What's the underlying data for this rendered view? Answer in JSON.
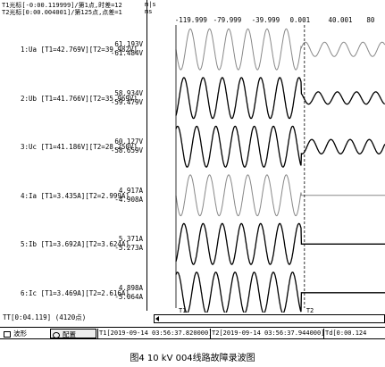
{
  "header": {
    "t1_cursor": "T1光标[-0:00.119999]/第1点,时差=12",
    "t2_cursor": "T2光标[0:00.004001]/第125点,点差=1",
    "unit_row1": "m|s",
    "unit_row2": "ms"
  },
  "time_axis": {
    "ticks": [
      {
        "label": "-119.999",
        "value": -119.999
      },
      {
        "label": "-79.999",
        "value": -79.999
      },
      {
        "label": "-39.999",
        "value": -39.999
      },
      {
        "label": "0.001",
        "value": 0.001
      },
      {
        "label": "40.001",
        "value": 40.001
      },
      {
        "label": "80",
        "value": 80
      }
    ],
    "range_ms": [
      -130,
      88
    ]
  },
  "channels": [
    {
      "label": "1:Ua [T1=42.769V][T2=39.982V]",
      "max": "61.193V",
      "min": "-61.484V",
      "color": "#888888",
      "amp_before": 1.0,
      "amp_after": 0.35
    },
    {
      "label": "2:Ub [T1=41.766V][T2=35.969V]",
      "max": "58.934V",
      "min": "-59.479V",
      "color": "#000000",
      "amp_before": 1.0,
      "amp_after": 0.3
    },
    {
      "label": "3:Uc [T1=41.186V][T2=28.250V]",
      "max": "60.127V",
      "min": "-58.659V",
      "color": "#000000",
      "amp_before": 1.0,
      "amp_after": 0.35
    },
    {
      "label": "4:Ia [T1=3.435A][T2=2.999A]",
      "max": "4.917A",
      "min": "-4.908A",
      "color": "#888888",
      "amp_before": 1.0,
      "amp_after": 0.0
    },
    {
      "label": "5:Ib [T1=3.692A][T2=3.624A]",
      "max": "5.371A",
      "min": "-5.273A",
      "color": "#000000",
      "amp_before": 1.0,
      "amp_after": 0.0
    },
    {
      "label": "6:Ic [T1=3.469A][T2=2.616A]",
      "max": "4.898A",
      "min": "-5.064A",
      "color": "#000000",
      "amp_before": 1.0,
      "amp_after": 0.0
    }
  ],
  "cursors": {
    "t1_label": "T1",
    "t2_label": "T2",
    "t1_ms": -119.999,
    "t2_ms": 4.001
  },
  "status_bar": {
    "tt": "TT[0:04.119] (4120点)"
  },
  "bottom_tabs": {
    "waveform_label": "波形",
    "config_label": "配置",
    "t1_time": "T1[2019-09-14 03:56:37.820000]",
    "t2_time": "T2[2019-09-14 03:56:37.944000]",
    "td": "Td[0:00.124"
  },
  "caption": "图4   10 kV 004线路故障录波图"
}
